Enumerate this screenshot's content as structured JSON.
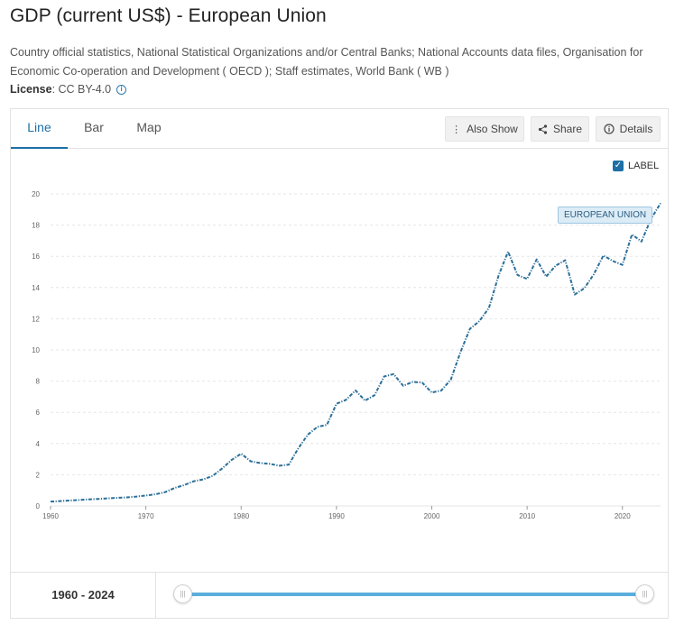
{
  "header": {
    "title": "GDP (current US$) - European Union",
    "sources": "Country official statistics, National Statistical Organizations and/or Central Banks; National Accounts data files, Organisation for Economic Co-operation and Development ( OECD ); Staff estimates, World Bank ( WB )",
    "license_label": "License",
    "license_value": " : CC BY-4.0"
  },
  "tabs": {
    "line": "Line",
    "bar": "Bar",
    "map": "Map"
  },
  "actions": {
    "also_show": "Also Show",
    "share": "Share",
    "details": "Details"
  },
  "label_toggle": {
    "text": "LABEL",
    "checked": true
  },
  "footer": {
    "range": "1960 - 2024"
  },
  "colors": {
    "accent": "#1d6fa5",
    "line": "#2b6f99",
    "grid": "#e6e6e6",
    "slider": "#5aaedc"
  },
  "chart_data": {
    "type": "line",
    "title": "GDP (current US$) - European Union",
    "xlabel": "",
    "ylabel": "",
    "xlim": [
      1960,
      2024
    ],
    "ylim": [
      0,
      20
    ],
    "x_ticks": [
      1960,
      1970,
      1980,
      1990,
      2000,
      2010,
      2020
    ],
    "y_ticks": [
      0,
      2,
      4,
      6,
      8,
      10,
      12,
      14,
      16,
      18,
      20
    ],
    "grid": true,
    "legend": "none",
    "series": [
      {
        "name": "EUROPEAN UNION",
        "x": [
          1960,
          1961,
          1962,
          1963,
          1964,
          1965,
          1966,
          1967,
          1968,
          1969,
          1970,
          1971,
          1972,
          1973,
          1974,
          1975,
          1976,
          1977,
          1978,
          1979,
          1980,
          1981,
          1982,
          1983,
          1984,
          1985,
          1986,
          1987,
          1988,
          1989,
          1990,
          1991,
          1992,
          1993,
          1994,
          1995,
          1996,
          1997,
          1998,
          1999,
          2000,
          2001,
          2002,
          2003,
          2004,
          2005,
          2006,
          2007,
          2008,
          2009,
          2010,
          2011,
          2012,
          2013,
          2014,
          2015,
          2016,
          2017,
          2018,
          2019,
          2020,
          2021,
          2022,
          2023,
          2024
        ],
        "values": [
          0.28,
          0.31,
          0.35,
          0.38,
          0.42,
          0.45,
          0.49,
          0.52,
          0.55,
          0.6,
          0.67,
          0.75,
          0.88,
          1.15,
          1.33,
          1.58,
          1.7,
          1.92,
          2.4,
          2.95,
          3.35,
          2.86,
          2.75,
          2.7,
          2.58,
          2.65,
          3.7,
          4.57,
          5.07,
          5.2,
          6.55,
          6.8,
          7.4,
          6.75,
          7.1,
          8.3,
          8.45,
          7.7,
          7.95,
          7.9,
          7.27,
          7.4,
          8.1,
          9.85,
          11.35,
          11.85,
          12.7,
          14.75,
          16.3,
          14.8,
          14.55,
          15.8,
          14.7,
          15.4,
          15.75,
          13.55,
          13.95,
          14.85,
          16.05,
          15.7,
          15.45,
          17.4,
          16.95,
          18.4,
          19.4
        ]
      }
    ]
  }
}
